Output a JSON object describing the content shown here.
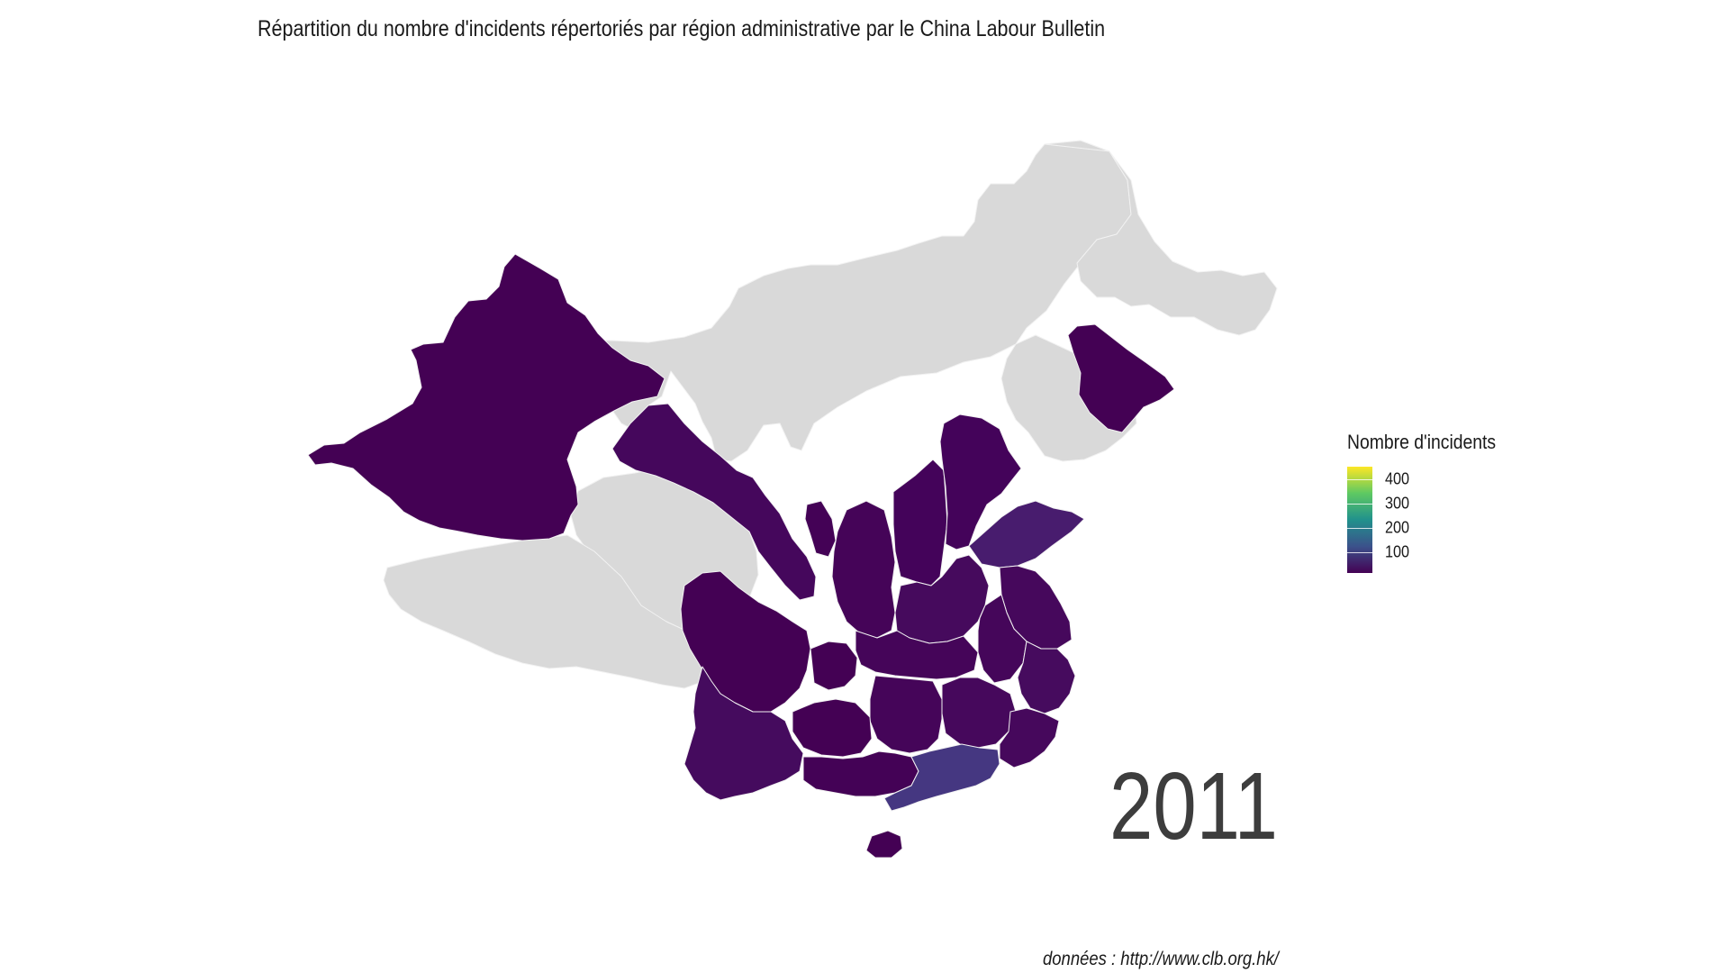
{
  "title": "Répartition du nombre d'incidents répertoriés par région administrative par le China Labour Bulletin",
  "year": "2011",
  "legend": {
    "title": "Nombre d'incidents",
    "ticks": [
      400,
      300,
      200,
      100
    ],
    "scale_min": 0,
    "scale_max": 440,
    "palette": "viridis"
  },
  "caption": "données : http://www.clb.org.hk/",
  "colors": {
    "no_data": "#d9d9d9",
    "border": "#f2f2f2",
    "low": "#440154",
    "high": "#fde725"
  },
  "regions": [
    {
      "name": "Xinjiang",
      "status": "low"
    },
    {
      "name": "Gansu",
      "status": "low"
    },
    {
      "name": "Ningxia",
      "status": "low"
    },
    {
      "name": "Shaanxi",
      "status": "low"
    },
    {
      "name": "Shanxi",
      "status": "low"
    },
    {
      "name": "Hebei",
      "status": "low"
    },
    {
      "name": "Beijing",
      "status": "low"
    },
    {
      "name": "Tianjin",
      "status": "low"
    },
    {
      "name": "Henan",
      "status": "low"
    },
    {
      "name": "Shandong",
      "status": "medium-low"
    },
    {
      "name": "Jiangsu",
      "status": "low"
    },
    {
      "name": "Anhui",
      "status": "low"
    },
    {
      "name": "Zhejiang",
      "status": "low"
    },
    {
      "name": "Sichuan",
      "status": "low"
    },
    {
      "name": "Chongqing",
      "status": "low"
    },
    {
      "name": "Hubei",
      "status": "low"
    },
    {
      "name": "Hunan",
      "status": "low"
    },
    {
      "name": "Jiangxi",
      "status": "low"
    },
    {
      "name": "Fujian",
      "status": "low"
    },
    {
      "name": "Guizhou",
      "status": "low"
    },
    {
      "name": "Yunnan",
      "status": "low"
    },
    {
      "name": "Guangxi",
      "status": "low"
    },
    {
      "name": "Guangdong",
      "status": "highest"
    },
    {
      "name": "Hainan",
      "status": "low"
    },
    {
      "name": "Jilin",
      "status": "low"
    },
    {
      "name": "Tibet",
      "status": "no data"
    },
    {
      "name": "Qinghai",
      "status": "no data"
    },
    {
      "name": "Inner Mongolia",
      "status": "no data"
    },
    {
      "name": "Heilongjiang",
      "status": "no data"
    },
    {
      "name": "Liaoning",
      "status": "no data"
    }
  ]
}
